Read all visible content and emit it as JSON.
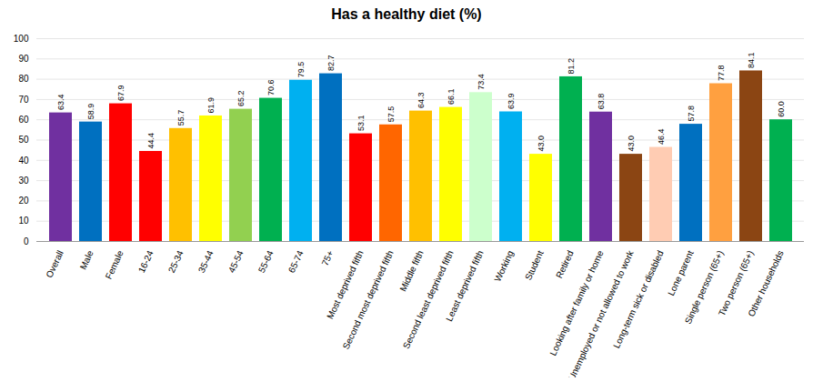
{
  "chart_data": {
    "type": "bar",
    "title": "Has a healthy diet (%)",
    "categories": [
      "Overall",
      "Male",
      "Female",
      "16-24",
      "25-34",
      "35-44",
      "45-54",
      "55-64",
      "65-74",
      "75+",
      "Most deprived fifth",
      "Second most deprived fifth",
      "Middle fifth",
      "Second least deprived fifth",
      "Least deprived fifth",
      "Working",
      "Student",
      "Retired",
      "Looking after family or home",
      "Unemployed or not allowed to work",
      "Long-term sick or disabled",
      "Lone parent",
      "Single person (65+)",
      "Two person (65+)",
      "Other households"
    ],
    "values": [
      63.4,
      58.9,
      67.9,
      44.4,
      55.7,
      61.9,
      65.2,
      70.6,
      79.5,
      82.7,
      53.1,
      57.5,
      64.3,
      66.1,
      73.4,
      63.9,
      43.0,
      81.2,
      63.8,
      43.0,
      46.4,
      57.8,
      77.8,
      84.1,
      60.0
    ],
    "value_labels": [
      "63.4",
      "58.9",
      "67.9",
      "44.4",
      "55.7",
      "61.9",
      "65.2",
      "70.6",
      "79.5",
      "82.7",
      "53.1",
      "57.5",
      "64.3",
      "66.1",
      "73.4",
      "63.9",
      "43.0",
      "81.2",
      "63.8",
      "43.0",
      "46.4",
      "57.8",
      "77.8",
      "84.1",
      "60.0"
    ],
    "colors": [
      "#7030A0",
      "#0070C0",
      "#FF0000",
      "#FF0000",
      "#FFC000",
      "#FFFF00",
      "#92D050",
      "#00B050",
      "#00B0F0",
      "#0070C0",
      "#FF0000",
      "#FF6600",
      "#FFC000",
      "#FFFF00",
      "#CCFFCC",
      "#00B0F0",
      "#FFFF00",
      "#00B050",
      "#7030A0",
      "#8B4513",
      "#FFCCB3",
      "#0070C0",
      "#FFA040",
      "#8B4513",
      "#00B050"
    ],
    "ylim": [
      0,
      100
    ],
    "yticks": [
      0,
      10,
      20,
      30,
      40,
      50,
      60,
      70,
      80,
      90,
      100
    ],
    "grid": true,
    "data_labels": true
  }
}
